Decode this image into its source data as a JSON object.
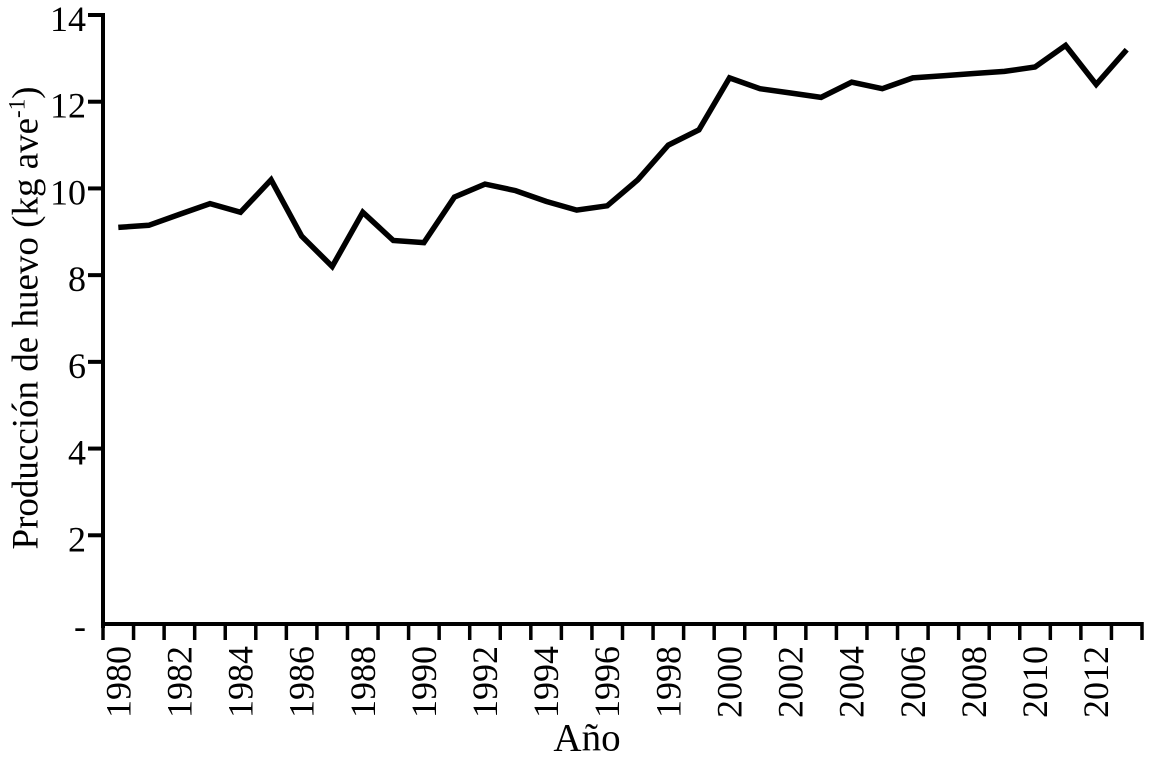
{
  "chart_data": {
    "type": "line",
    "title": "",
    "xlabel": "Año",
    "ylabel": "Producción de huevo (kg ave⁻¹)",
    "ylabel_main": "Producción de huevo (kg ave",
    "ylabel_sup": "-1",
    "ylabel_close": ")",
    "x": [
      1980,
      1981,
      1982,
      1983,
      1984,
      1985,
      1986,
      1987,
      1988,
      1989,
      1990,
      1991,
      1992,
      1993,
      1994,
      1995,
      1996,
      1997,
      1998,
      1999,
      2000,
      2001,
      2002,
      2003,
      2004,
      2005,
      2006,
      2007,
      2008,
      2009,
      2010,
      2011,
      2012,
      2013
    ],
    "values": [
      9.1,
      9.15,
      9.4,
      9.65,
      9.45,
      10.2,
      8.9,
      8.2,
      9.45,
      8.8,
      8.75,
      9.8,
      10.1,
      9.95,
      9.7,
      9.5,
      9.6,
      10.2,
      11.0,
      11.35,
      12.55,
      12.3,
      12.2,
      12.1,
      12.45,
      12.3,
      12.55,
      12.6,
      12.65,
      12.7,
      12.8,
      13.3,
      12.4,
      13.2
    ],
    "series_name": "Producción de huevo",
    "ylim": [
      0,
      14
    ],
    "y_ticks": [
      0,
      2,
      4,
      6,
      8,
      10,
      12,
      14
    ],
    "y_tick_labels": [
      "-",
      "2",
      "4",
      "6",
      "8",
      "10",
      "12",
      "14"
    ],
    "x_labeled_years": [
      1980,
      1982,
      1984,
      1986,
      1988,
      1990,
      1992,
      1994,
      1996,
      1998,
      2000,
      2002,
      2004,
      2006,
      2008,
      2010,
      2012
    ],
    "grid": false,
    "legend": "none",
    "line_color": "#000000",
    "axis_color": "#000000",
    "background": "#ffffff"
  }
}
